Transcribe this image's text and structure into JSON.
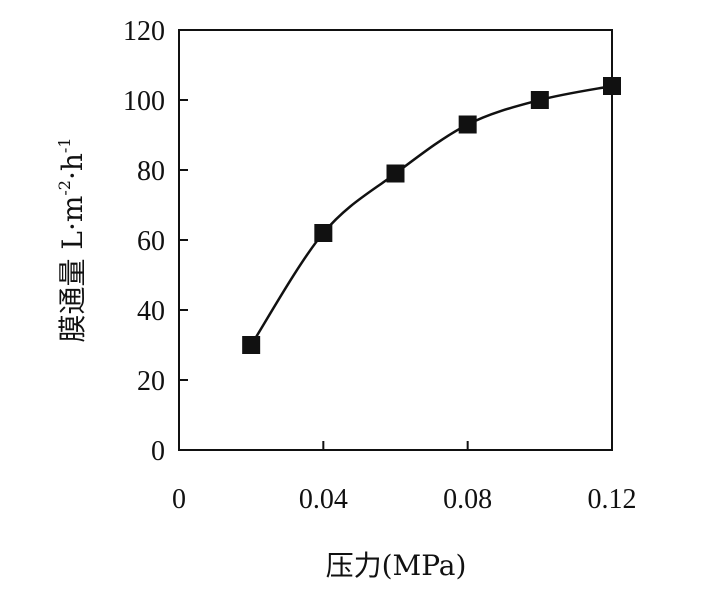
{
  "chart_data": {
    "type": "line",
    "title": "",
    "xlabel": "压力(MPa)",
    "ylabel": {
      "prefix": "膜通量 L·m",
      "sup1": "-2",
      "mid": "·h",
      "sup2": "-1"
    },
    "xlim": [
      0,
      0.12
    ],
    "ylim": [
      0,
      120
    ],
    "xticks": [
      {
        "value": 0,
        "label": "0"
      },
      {
        "value": 0.04,
        "label": "0.04"
      },
      {
        "value": 0.08,
        "label": "0.08"
      },
      {
        "value": 0.12,
        "label": "0.12"
      }
    ],
    "yticks": [
      {
        "value": 0,
        "label": "0"
      },
      {
        "value": 20,
        "label": "20"
      },
      {
        "value": 40,
        "label": "40"
      },
      {
        "value": 60,
        "label": "60"
      },
      {
        "value": 80,
        "label": "80"
      },
      {
        "value": 100,
        "label": "100"
      },
      {
        "value": 120,
        "label": "120"
      }
    ],
    "grid": false,
    "marker": "square",
    "color": "#111111",
    "series": [
      {
        "x": [
          0.02,
          0.04,
          0.06,
          0.08,
          0.1,
          0.12
        ],
        "y": [
          30,
          62,
          79,
          93,
          100,
          104
        ]
      }
    ]
  }
}
